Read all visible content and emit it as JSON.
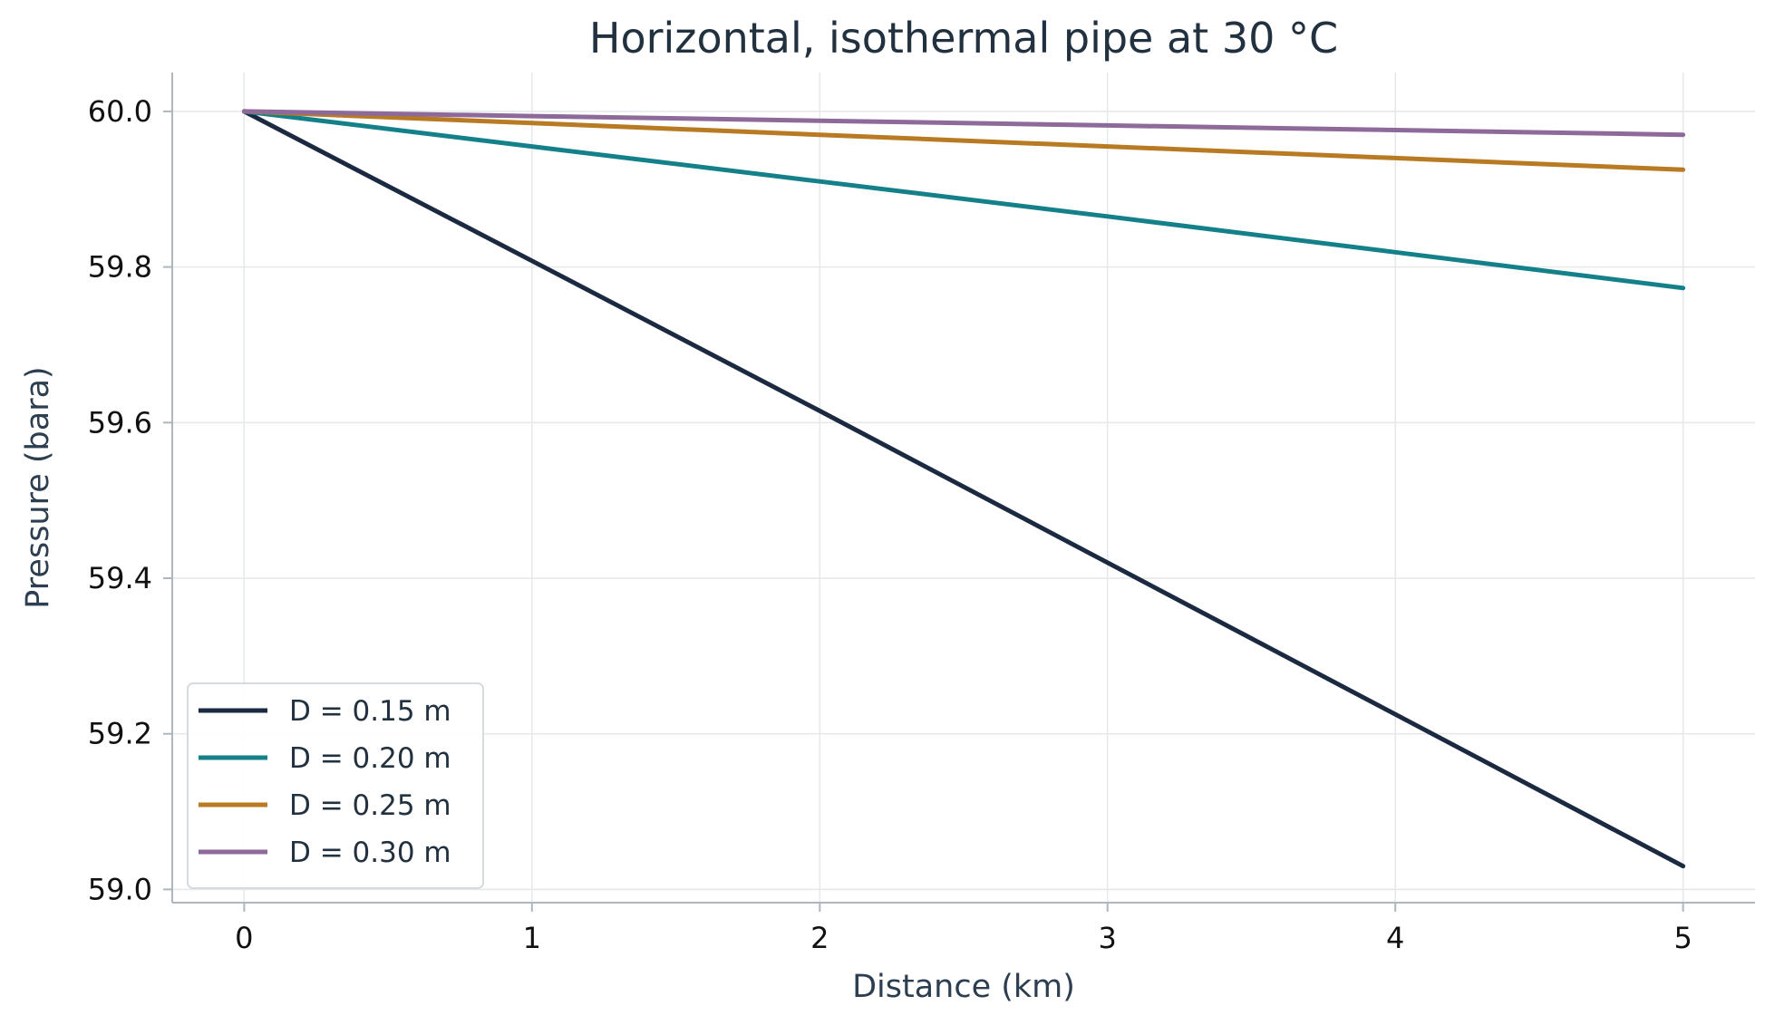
{
  "chart_data": {
    "type": "line",
    "title": "Horizontal, isothermal pipe at 30 °C",
    "xlabel": "Distance (km)",
    "ylabel": "Pressure (bara)",
    "xlim": [
      -0.25,
      5.25
    ],
    "ylim": [
      58.983,
      60.05
    ],
    "xticks": [
      0,
      1,
      2,
      3,
      4,
      5
    ],
    "yticks": [
      59.0,
      59.2,
      59.4,
      59.6,
      59.8,
      60.0
    ],
    "xtick_labels": [
      "0",
      "1",
      "2",
      "3",
      "4",
      "5"
    ],
    "ytick_labels": [
      "59.0",
      "59.2",
      "59.4",
      "59.6",
      "59.8",
      "60.0"
    ],
    "grid": true,
    "legend_position": "lower-left",
    "series": [
      {
        "name": "D = 0.15 m",
        "color": "#1b2a41",
        "x": [
          0,
          1,
          2,
          3,
          4,
          5
        ],
        "y": [
          60.0,
          59.808,
          59.615,
          59.42,
          59.225,
          59.03
        ]
      },
      {
        "name": "D = 0.20 m",
        "color": "#14808a",
        "x": [
          0,
          1,
          2,
          3,
          4,
          5
        ],
        "y": [
          60.0,
          59.955,
          59.91,
          59.865,
          59.819,
          59.773
        ]
      },
      {
        "name": "D = 0.25 m",
        "color": "#b87a22",
        "x": [
          0,
          1,
          2,
          3,
          4,
          5
        ],
        "y": [
          60.0,
          59.985,
          59.97,
          59.955,
          59.94,
          59.925
        ]
      },
      {
        "name": "D = 0.30 m",
        "color": "#8e6a9a",
        "x": [
          0,
          1,
          2,
          3,
          4,
          5
        ],
        "y": [
          60.0,
          59.994,
          59.988,
          59.982,
          59.976,
          59.97
        ]
      }
    ]
  }
}
